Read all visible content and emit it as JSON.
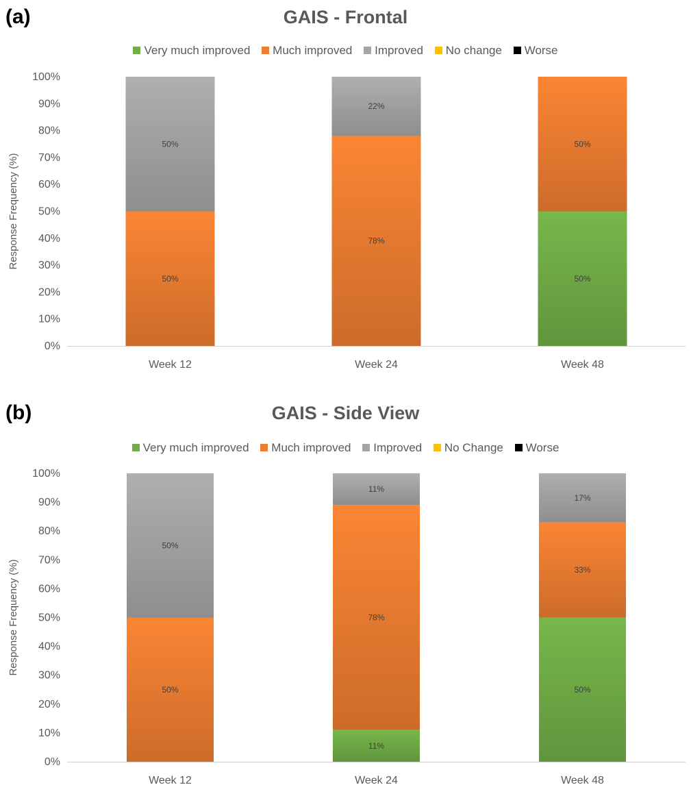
{
  "colors": {
    "very_much_improved": "#70ad47",
    "much_improved": "#ed7d31",
    "improved": "#a5a5a5",
    "no_change": "#ffc000",
    "worse": "#000000"
  },
  "chart_data": [
    {
      "panel": "(a)",
      "type": "bar",
      "stacked": true,
      "title": "GAIS - Frontal",
      "ylabel": "Response Frequency (%)",
      "xlabel": "",
      "ylim": [
        0,
        100
      ],
      "yticks": [
        "0%",
        "10%",
        "20%",
        "30%",
        "40%",
        "50%",
        "60%",
        "70%",
        "80%",
        "90%",
        "100%"
      ],
      "categories": [
        "Week 12",
        "Week 24",
        "Week 48"
      ],
      "legend_position": "top",
      "series": [
        {
          "name": "Very much improved",
          "color": "#70ad47",
          "values": [
            0,
            0,
            50
          ],
          "labels": [
            "",
            "",
            "50%"
          ]
        },
        {
          "name": "Much improved",
          "color": "#ed7d31",
          "values": [
            50,
            78,
            50
          ],
          "labels": [
            "50%",
            "78%",
            "50%"
          ]
        },
        {
          "name": "Improved",
          "color": "#a5a5a5",
          "values": [
            50,
            22,
            0
          ],
          "labels": [
            "50%",
            "22%",
            ""
          ]
        },
        {
          "name": "No change",
          "color": "#ffc000",
          "values": [
            0,
            0,
            0
          ],
          "labels": [
            "",
            "",
            ""
          ]
        },
        {
          "name": "Worse",
          "color": "#000000",
          "values": [
            0,
            0,
            0
          ],
          "labels": [
            "",
            "",
            ""
          ]
        }
      ]
    },
    {
      "panel": "(b)",
      "type": "bar",
      "stacked": true,
      "title": "GAIS - Side View",
      "ylabel": "Response Frequency (%)",
      "xlabel": "",
      "ylim": [
        0,
        100
      ],
      "yticks": [
        "0%",
        "10%",
        "20%",
        "30%",
        "40%",
        "50%",
        "60%",
        "70%",
        "80%",
        "90%",
        "100%"
      ],
      "categories": [
        "Week 12",
        "Week 24",
        "Week 48"
      ],
      "legend_position": "top",
      "series": [
        {
          "name": "Very much improved",
          "color": "#70ad47",
          "values": [
            0,
            11,
            50
          ],
          "labels": [
            "",
            "11%",
            "50%"
          ]
        },
        {
          "name": "Much improved",
          "color": "#ed7d31",
          "values": [
            50,
            78,
            33
          ],
          "labels": [
            "50%",
            "78%",
            "33%"
          ]
        },
        {
          "name": "Improved",
          "color": "#a5a5a5",
          "values": [
            50,
            11,
            17
          ],
          "labels": [
            "50%",
            "11%",
            "17%"
          ]
        },
        {
          "name": "No Change",
          "color": "#ffc000",
          "values": [
            0,
            0,
            0
          ],
          "labels": [
            "",
            "",
            ""
          ]
        },
        {
          "name": "Worse",
          "color": "#000000",
          "values": [
            0,
            0,
            0
          ],
          "labels": [
            "",
            "",
            ""
          ]
        }
      ]
    }
  ]
}
